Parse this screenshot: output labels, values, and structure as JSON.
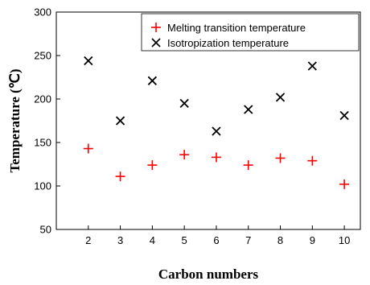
{
  "chart_data": {
    "type": "scatter",
    "title": "",
    "xlabel": "Carbon numbers",
    "ylabel": "Temperature (℃)",
    "xlim": [
      1,
      10.5
    ],
    "ylim": [
      50,
      300
    ],
    "xticks": [
      2,
      3,
      4,
      5,
      6,
      7,
      8,
      9,
      10
    ],
    "yticks": [
      50,
      100,
      150,
      200,
      250,
      300
    ],
    "legend_position": "top-right",
    "grid": false,
    "series": [
      {
        "name": "Melting transition temperature",
        "marker": "plus",
        "color": "#ff0000",
        "points": [
          [
            2,
            143
          ],
          [
            3,
            111
          ],
          [
            4,
            124
          ],
          [
            5,
            136
          ],
          [
            6,
            133
          ],
          [
            7,
            124
          ],
          [
            8,
            132
          ],
          [
            9,
            129
          ],
          [
            10,
            102
          ]
        ]
      },
      {
        "name": "Isotropization temperature",
        "marker": "x",
        "color": "#000000",
        "points": [
          [
            2,
            244
          ],
          [
            3,
            175
          ],
          [
            4,
            221
          ],
          [
            5,
            195
          ],
          [
            6,
            163
          ],
          [
            7,
            188
          ],
          [
            8,
            202
          ],
          [
            9,
            238
          ],
          [
            10,
            181
          ]
        ]
      }
    ]
  }
}
